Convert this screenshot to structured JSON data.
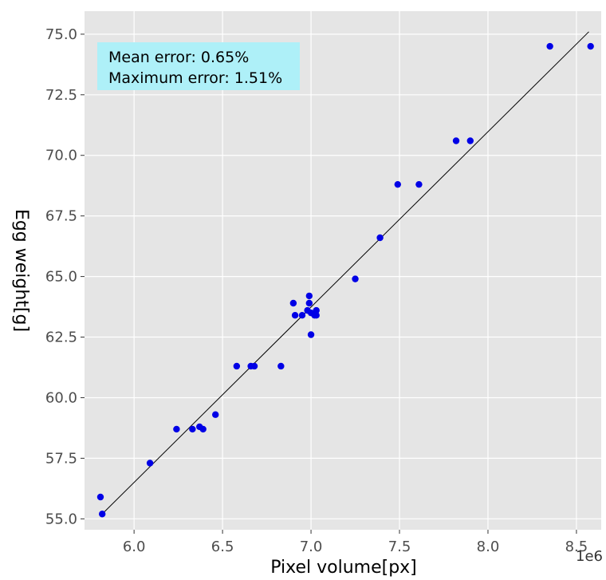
{
  "chart_data": {
    "type": "scatter",
    "title": "",
    "xlabel": "Pixel volume[px]",
    "ylabel": "Egg weight[g]",
    "x_offset_label": "1e6",
    "xlim": [
      5.72,
      8.64
    ],
    "ylim": [
      54.55,
      75.95
    ],
    "x_ticks": [
      6.0,
      6.5,
      7.0,
      7.5,
      8.0,
      8.5
    ],
    "x_tick_labels": [
      "6.0",
      "6.5",
      "7.0",
      "7.5",
      "8.0",
      "8.5"
    ],
    "y_ticks": [
      55.0,
      57.5,
      60.0,
      62.5,
      65.0,
      67.5,
      70.0,
      72.5,
      75.0
    ],
    "y_tick_labels": [
      "55.0",
      "57.5",
      "60.0",
      "62.5",
      "65.0",
      "67.5",
      "70.0",
      "72.5",
      "75.0"
    ],
    "grid": true,
    "annotation": {
      "lines": [
        "Mean error: 0.65%",
        "Maximum error: 1.51%"
      ],
      "background": "#aef0f8"
    },
    "fit_line": {
      "x": [
        5.82,
        8.57
      ],
      "y": [
        55.2,
        75.1
      ],
      "color": "#000000"
    },
    "series": [
      {
        "color": "#0000e6",
        "x": [
          5.81,
          5.82,
          6.09,
          6.24,
          6.33,
          6.37,
          6.39,
          6.46,
          6.58,
          6.66,
          6.68,
          6.83,
          6.9,
          6.91,
          6.95,
          6.98,
          6.99,
          6.99,
          7.0,
          7.0,
          7.02,
          7.03,
          7.03,
          7.25,
          7.39,
          7.49,
          7.61,
          7.82,
          7.9,
          8.35,
          8.58
        ],
        "y": [
          55.9,
          55.2,
          57.3,
          58.7,
          58.7,
          58.8,
          58.7,
          59.3,
          61.3,
          61.3,
          61.3,
          61.3,
          63.9,
          63.4,
          63.4,
          63.6,
          64.2,
          63.9,
          63.5,
          62.6,
          63.4,
          63.6,
          63.4,
          64.9,
          66.6,
          68.8,
          68.8,
          70.6,
          70.6,
          74.5,
          74.5
        ]
      }
    ]
  },
  "colors": {
    "panel_bg": "#e5e5e5",
    "grid": "#ffffff",
    "point": "#0000e6",
    "annotation_bg": "#aef0f8"
  }
}
